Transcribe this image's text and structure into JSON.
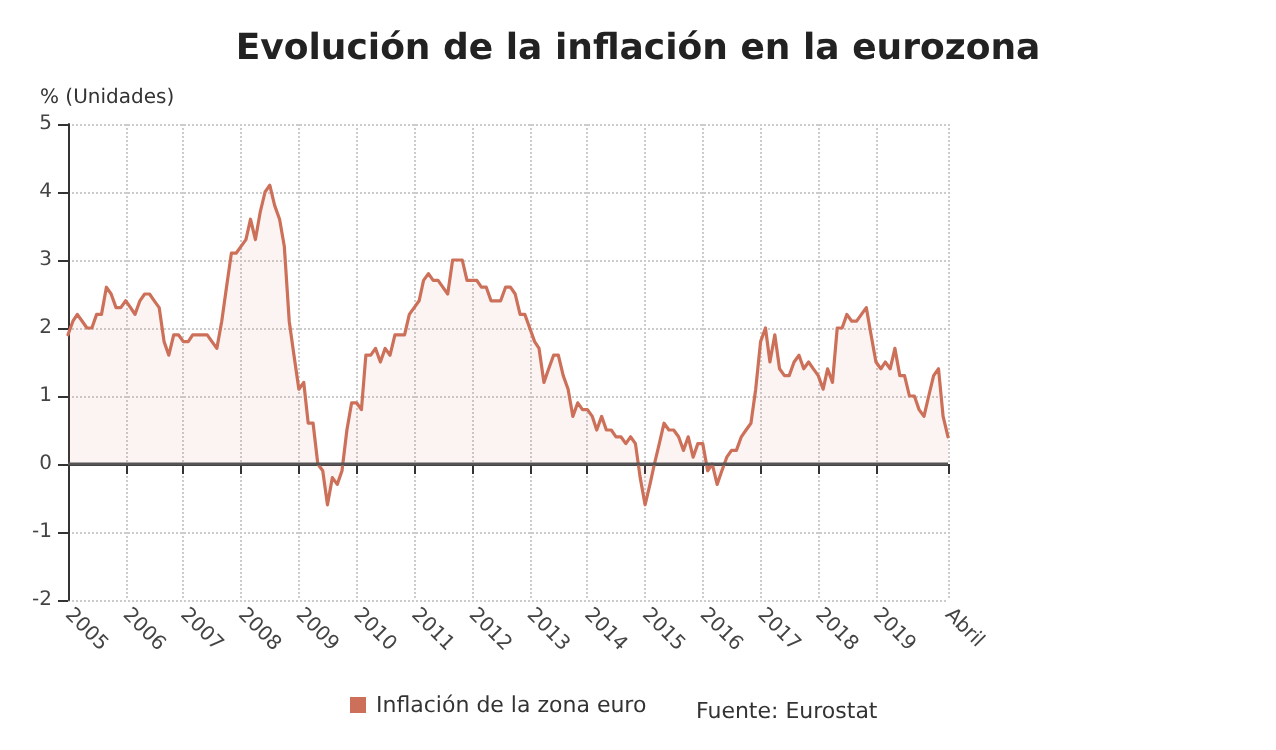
{
  "chart_data": {
    "type": "area",
    "title": "Evolución de la inflación en la eurozona",
    "ylabel": "% (Unidades)",
    "annotations": [
      "Fuente: Eurostat"
    ],
    "x": [
      "2005-01",
      "2005-02",
      "2005-03",
      "2005-04",
      "2005-05",
      "2005-06",
      "2005-07",
      "2005-08",
      "2005-09",
      "2005-10",
      "2005-11",
      "2005-12",
      "2006-01",
      "2006-02",
      "2006-03",
      "2006-04",
      "2006-05",
      "2006-06",
      "2006-07",
      "2006-08",
      "2006-09",
      "2006-10",
      "2006-11",
      "2006-12",
      "2007-01",
      "2007-02",
      "2007-03",
      "2007-04",
      "2007-05",
      "2007-06",
      "2007-07",
      "2007-08",
      "2007-09",
      "2007-10",
      "2007-11",
      "2007-12",
      "2008-01",
      "2008-02",
      "2008-03",
      "2008-04",
      "2008-05",
      "2008-06",
      "2008-07",
      "2008-08",
      "2008-09",
      "2008-10",
      "2008-11",
      "2008-12",
      "2009-01",
      "2009-02",
      "2009-03",
      "2009-04",
      "2009-05",
      "2009-06",
      "2009-07",
      "2009-08",
      "2009-09",
      "2009-10",
      "2009-11",
      "2009-12",
      "2010-01",
      "2010-02",
      "2010-03",
      "2010-04",
      "2010-05",
      "2010-06",
      "2010-07",
      "2010-08",
      "2010-09",
      "2010-10",
      "2010-11",
      "2010-12",
      "2011-01",
      "2011-02",
      "2011-03",
      "2011-04",
      "2011-05",
      "2011-06",
      "2011-07",
      "2011-08",
      "2011-09",
      "2011-10",
      "2011-11",
      "2011-12",
      "2012-01",
      "2012-02",
      "2012-03",
      "2012-04",
      "2012-05",
      "2012-06",
      "2012-07",
      "2012-08",
      "2012-09",
      "2012-10",
      "2012-11",
      "2012-12",
      "2013-01",
      "2013-02",
      "2013-03",
      "2013-04",
      "2013-05",
      "2013-06",
      "2013-07",
      "2013-08",
      "2013-09",
      "2013-10",
      "2013-11",
      "2013-12",
      "2014-01",
      "2014-02",
      "2014-03",
      "2014-04",
      "2014-05",
      "2014-06",
      "2014-07",
      "2014-08",
      "2014-09",
      "2014-10",
      "2014-11",
      "2014-12",
      "2015-01",
      "2015-02",
      "2015-03",
      "2015-04",
      "2015-05",
      "2015-06",
      "2015-07",
      "2015-08",
      "2015-09",
      "2015-10",
      "2015-11",
      "2015-12",
      "2016-01",
      "2016-02",
      "2016-03",
      "2016-04",
      "2016-05",
      "2016-06",
      "2016-07",
      "2016-08",
      "2016-09",
      "2016-10",
      "2016-11",
      "2016-12",
      "2017-01",
      "2017-02",
      "2017-03",
      "2017-04",
      "2017-05",
      "2017-06",
      "2017-07",
      "2017-08",
      "2017-09",
      "2017-10",
      "2017-11",
      "2017-12",
      "2018-01",
      "2018-02",
      "2018-03",
      "2018-04",
      "2018-05",
      "2018-06",
      "2018-07",
      "2018-08",
      "2018-09",
      "2018-10",
      "2018-11",
      "2018-12",
      "2019-01",
      "2019-02",
      "2019-03",
      "2019-04",
      "2019-05",
      "2019-06",
      "2019-07",
      "2019-08",
      "2019-09",
      "2019-10",
      "2019-11",
      "2019-12",
      "2020-01",
      "2020-02",
      "2020-03",
      "2020-04"
    ],
    "series": [
      {
        "name": "Inflación de la zona euro",
        "color": "#cd705a",
        "values": [
          1.9,
          2.1,
          2.2,
          2.1,
          2.0,
          2.0,
          2.2,
          2.2,
          2.6,
          2.5,
          2.3,
          2.3,
          2.4,
          2.3,
          2.2,
          2.4,
          2.5,
          2.5,
          2.4,
          2.3,
          1.8,
          1.6,
          1.9,
          1.9,
          1.8,
          1.8,
          1.9,
          1.9,
          1.9,
          1.9,
          1.8,
          1.7,
          2.1,
          2.6,
          3.1,
          3.1,
          3.2,
          3.3,
          3.6,
          3.3,
          3.7,
          4.0,
          4.1,
          3.8,
          3.6,
          3.2,
          2.1,
          1.6,
          1.1,
          1.2,
          0.6,
          0.6,
          0.0,
          -0.1,
          -0.6,
          -0.2,
          -0.3,
          -0.1,
          0.5,
          0.9,
          0.9,
          0.8,
          1.6,
          1.6,
          1.7,
          1.5,
          1.7,
          1.6,
          1.9,
          1.9,
          1.9,
          2.2,
          2.3,
          2.4,
          2.7,
          2.8,
          2.7,
          2.7,
          2.6,
          2.5,
          3.0,
          3.0,
          3.0,
          2.7,
          2.7,
          2.7,
          2.6,
          2.6,
          2.4,
          2.4,
          2.4,
          2.6,
          2.6,
          2.5,
          2.2,
          2.2,
          2.0,
          1.8,
          1.7,
          1.2,
          1.4,
          1.6,
          1.6,
          1.3,
          1.1,
          0.7,
          0.9,
          0.8,
          0.8,
          0.7,
          0.5,
          0.7,
          0.5,
          0.5,
          0.4,
          0.4,
          0.3,
          0.4,
          0.3,
          -0.2,
          -0.6,
          -0.3,
          0.0,
          0.3,
          0.6,
          0.5,
          0.5,
          0.4,
          0.2,
          0.4,
          0.1,
          0.3,
          0.3,
          -0.1,
          0.0,
          -0.3,
          -0.1,
          0.1,
          0.2,
          0.2,
          0.4,
          0.5,
          0.6,
          1.1,
          1.8,
          2.0,
          1.5,
          1.9,
          1.4,
          1.3,
          1.3,
          1.5,
          1.6,
          1.4,
          1.5,
          1.4,
          1.3,
          1.1,
          1.4,
          1.2,
          2.0,
          2.0,
          2.2,
          2.1,
          2.1,
          2.2,
          2.3,
          1.9,
          1.5,
          1.4,
          1.5,
          1.4,
          1.7,
          1.3,
          1.3,
          1.0,
          1.0,
          0.8,
          0.7,
          1.0,
          1.3,
          1.4,
          0.7,
          0.4
        ]
      }
    ],
    "xlim": [
      "2005-01",
      "2020-04"
    ],
    "xticks": [
      {
        "value": "2005-01",
        "label": "2005"
      },
      {
        "value": "2006-01",
        "label": "2006"
      },
      {
        "value": "2007-01",
        "label": "2007"
      },
      {
        "value": "2008-01",
        "label": "2008"
      },
      {
        "value": "2009-01",
        "label": "2009"
      },
      {
        "value": "2010-01",
        "label": "2010"
      },
      {
        "value": "2011-01",
        "label": "2011"
      },
      {
        "value": "2012-01",
        "label": "2012"
      },
      {
        "value": "2013-01",
        "label": "2013"
      },
      {
        "value": "2014-01",
        "label": "2014"
      },
      {
        "value": "2015-01",
        "label": "2015"
      },
      {
        "value": "2016-01",
        "label": "2016"
      },
      {
        "value": "2017-01",
        "label": "2017"
      },
      {
        "value": "2018-01",
        "label": "2018"
      },
      {
        "value": "2019-01",
        "label": "2019"
      },
      {
        "value": "2020-04",
        "label": "Abril"
      }
    ],
    "ylim": [
      -2,
      5
    ],
    "yticks": [
      -2,
      -1,
      0,
      1,
      2,
      3,
      4,
      5
    ],
    "ref_lines": [
      {
        "axis": "y",
        "value": 0,
        "color": "#555555"
      }
    ],
    "grid": true,
    "legend": "bottom",
    "marker": "none",
    "line_style": "solid"
  }
}
